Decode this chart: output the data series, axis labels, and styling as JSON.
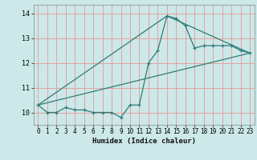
{
  "xlabel": "Humidex (Indice chaleur)",
  "bg_color": "#cce8e8",
  "grid_color": "#e8a0a0",
  "line_color": "#2d7d7a",
  "xlim": [
    -0.5,
    23.5
  ],
  "ylim": [
    9.5,
    14.35
  ],
  "yticks": [
    10,
    11,
    12,
    13,
    14
  ],
  "xticks": [
    0,
    1,
    2,
    3,
    4,
    5,
    6,
    7,
    8,
    9,
    10,
    11,
    12,
    13,
    14,
    15,
    16,
    17,
    18,
    19,
    20,
    21,
    22,
    23
  ],
  "series1_x": [
    0,
    1,
    2,
    3,
    4,
    5,
    6,
    7,
    8,
    9,
    10,
    11,
    12,
    13,
    14,
    15,
    16,
    17,
    18,
    19,
    20,
    21,
    22,
    23
  ],
  "series1_y": [
    10.3,
    10.0,
    10.0,
    10.2,
    10.1,
    10.1,
    10.0,
    10.0,
    10.0,
    9.8,
    10.3,
    10.3,
    12.0,
    12.5,
    13.9,
    13.8,
    13.5,
    12.6,
    12.7,
    12.7,
    12.7,
    12.7,
    12.5,
    12.4
  ],
  "series2_x": [
    0,
    14,
    23
  ],
  "series2_y": [
    10.3,
    13.9,
    12.4
  ],
  "series3_x": [
    0,
    23
  ],
  "series3_y": [
    10.3,
    12.4
  ]
}
